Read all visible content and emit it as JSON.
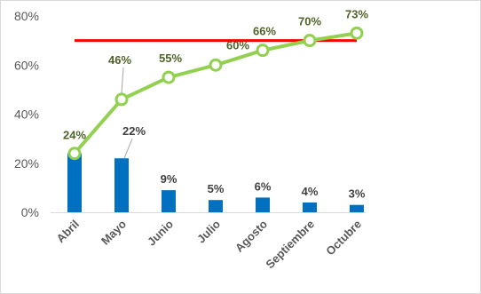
{
  "chart_data": {
    "type": "bar",
    "categories": [
      "Abril",
      "Mayo",
      "Junio",
      "Julio",
      "Agosto",
      "Septiembre",
      "Octubre"
    ],
    "y_ticks": [
      "0%",
      "20%",
      "40%",
      "60%",
      "80%"
    ],
    "ylim": [
      0,
      80
    ],
    "grid": false,
    "series": [
      {
        "type": "bar",
        "values": [
          24,
          22,
          9,
          5,
          6,
          4,
          3
        ],
        "labels": [
          "",
          "22%",
          "9%",
          "5%",
          "6%",
          "4%",
          "3%"
        ],
        "color": "#0070c0"
      },
      {
        "type": "line",
        "values": [
          24,
          46,
          55,
          60,
          66,
          70,
          73
        ],
        "labels": [
          "24%",
          "46%",
          "55%",
          "60%",
          "66%",
          "70%",
          "73%"
        ],
        "color": "#92d050"
      },
      {
        "type": "line",
        "target_value": 70,
        "x_span": [
          "Abril",
          "Octubre"
        ],
        "color": "#ff0000"
      }
    ]
  }
}
